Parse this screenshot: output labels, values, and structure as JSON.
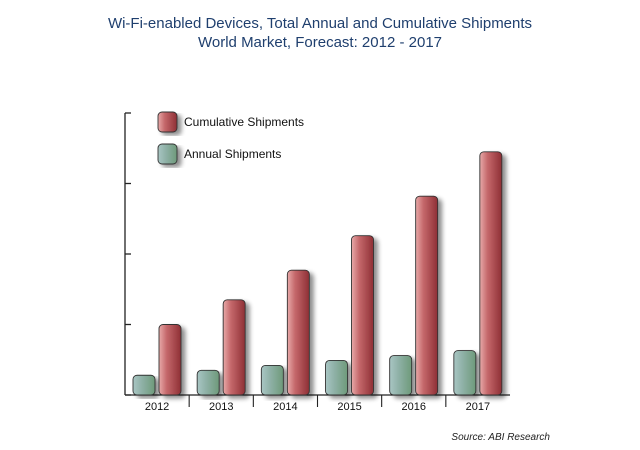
{
  "chart_data": {
    "type": "bar",
    "title": "Wi-Fi-enabled Devices, Total Annual and Cumulative Shipments",
    "subtitle": "World Market, Forecast: 2012 - 2017",
    "categories": [
      "2012",
      "2013",
      "2014",
      "2015",
      "2016",
      "2017"
    ],
    "series": [
      {
        "name": "Annual Shipments",
        "values": [
          0.28,
          0.35,
          0.42,
          0.49,
          0.56,
          0.63
        ],
        "color": "#8fb08f"
      },
      {
        "name": "Cumulative Shipments",
        "values": [
          1.0,
          1.35,
          1.77,
          2.26,
          2.82,
          3.45
        ],
        "color": "#b24a4f"
      }
    ],
    "legend_order": [
      "Cumulative Shipments",
      "Annual Shipments"
    ],
    "legend_position": "top-left",
    "ylim": [
      0,
      4
    ],
    "yticks": [
      0,
      1,
      2,
      3,
      4
    ],
    "ytick_labels_shown": false,
    "xlabel": "",
    "ylabel": "",
    "grid": false
  },
  "source": "Source: ABI Research"
}
